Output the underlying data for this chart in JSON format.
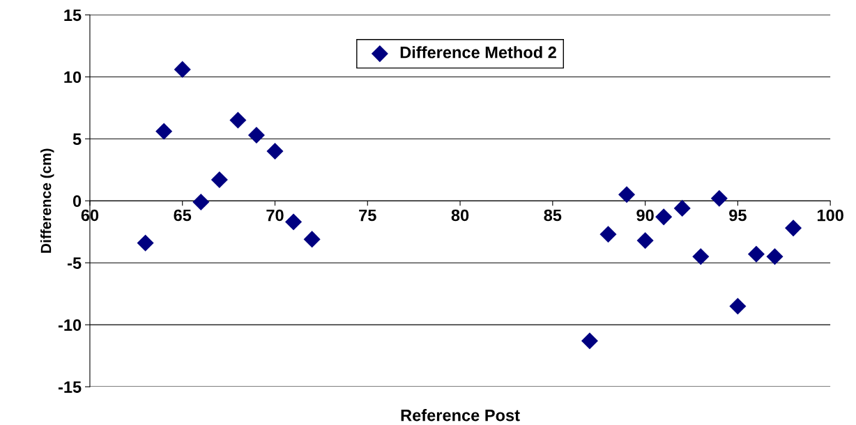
{
  "chart_data": {
    "type": "scatter",
    "xlabel": "Reference Post",
    "ylabel": "Difference (cm)",
    "x": [
      63,
      64,
      65,
      66,
      67,
      68,
      69,
      70,
      71,
      72,
      87,
      88,
      89,
      90,
      91,
      92,
      93,
      94,
      95,
      96,
      97,
      98
    ],
    "series": [
      {
        "name": "Difference Method 2",
        "color": "#000080",
        "values": [
          -3.4,
          5.6,
          10.6,
          -0.1,
          1.7,
          6.5,
          5.3,
          4.0,
          -1.7,
          -3.1,
          -11.3,
          -2.7,
          0.5,
          -3.2,
          -1.3,
          -0.6,
          -4.5,
          0.2,
          -8.5,
          -4.3,
          -4.5,
          -2.2
        ]
      }
    ],
    "xlim": [
      60,
      100
    ],
    "xticks": [
      60,
      65,
      70,
      75,
      80,
      85,
      90,
      95,
      100
    ],
    "ylim": [
      -15,
      15
    ],
    "yticks": [
      -15,
      -10,
      -5,
      0,
      5,
      10,
      15
    ],
    "grid": "y",
    "legend": "top",
    "marker": "diamond"
  }
}
